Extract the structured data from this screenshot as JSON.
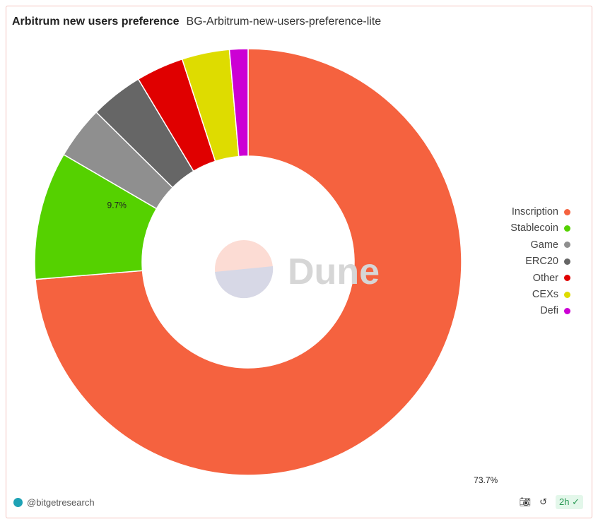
{
  "header": {
    "title": "Arbitrum new users preference",
    "query_name": "BG-Arbitrum-new-users-preference-lite"
  },
  "chart_data": {
    "type": "pie",
    "donut": true,
    "categories": [
      "Inscription",
      "Stablecoin",
      "Game",
      "ERC20",
      "Other",
      "CEXs",
      "Defi"
    ],
    "values": [
      73.7,
      9.7,
      4.0,
      4.0,
      3.6,
      3.6,
      1.4
    ],
    "colors": [
      "#f5623f",
      "#55d100",
      "#8f8f8f",
      "#666666",
      "#e00000",
      "#dedc00",
      "#cc00d4"
    ],
    "data_labels": {
      "Inscription": "73.7%",
      "Stablecoin": "9.7%"
    },
    "legend_position": "right"
  },
  "watermark": "Dune",
  "footer": {
    "author": "@bitgetresearch",
    "refresh_age": "2h"
  }
}
